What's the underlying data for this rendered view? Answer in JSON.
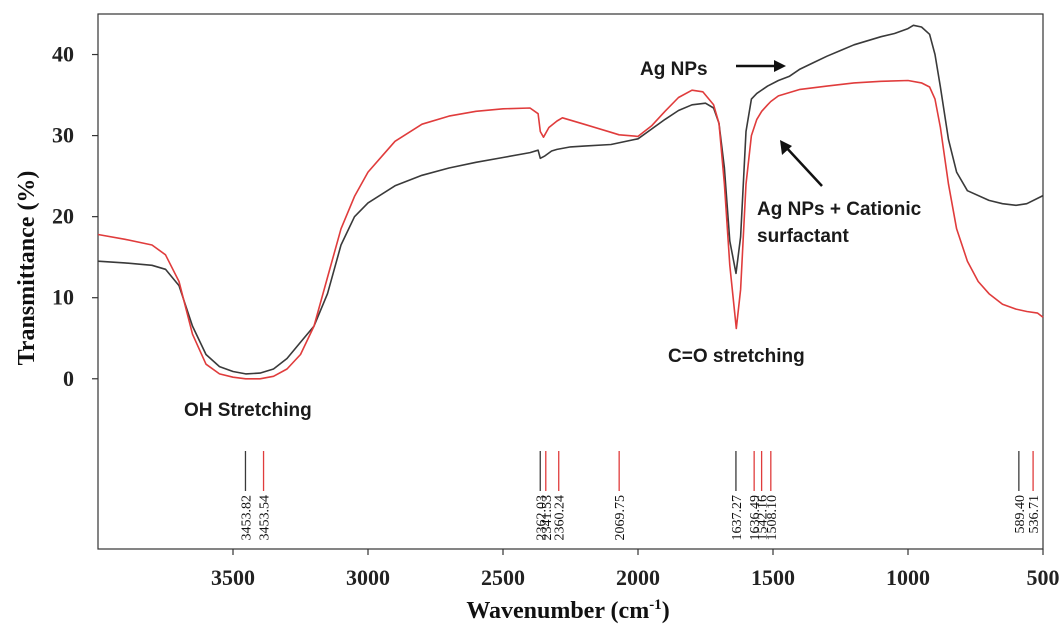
{
  "chart_data": {
    "type": "line",
    "xlabel": "Wavenumber (cm",
    "xlabel_sup": "-1",
    "xlabel_close": ")",
    "ylabel": "Transmittance (%)",
    "xlim": [
      4000,
      500
    ],
    "ylim": [
      -21,
      45
    ],
    "x_ticks": [
      3500,
      3000,
      2500,
      2000,
      1500,
      1000,
      500
    ],
    "y_ticks": [
      0,
      10,
      20,
      30,
      40
    ],
    "grid": false,
    "series": [
      {
        "name": "Ag NPs",
        "color": "#3a3a3a",
        "points": [
          [
            4000,
            14.5
          ],
          [
            3900,
            14.3
          ],
          [
            3800,
            14.0
          ],
          [
            3750,
            13.5
          ],
          [
            3700,
            11.5
          ],
          [
            3650,
            6.5
          ],
          [
            3600,
            3.0
          ],
          [
            3550,
            1.5
          ],
          [
            3500,
            0.9
          ],
          [
            3453,
            0.6
          ],
          [
            3400,
            0.7
          ],
          [
            3350,
            1.2
          ],
          [
            3300,
            2.5
          ],
          [
            3250,
            4.5
          ],
          [
            3200,
            6.5
          ],
          [
            3150,
            10.5
          ],
          [
            3100,
            16.5
          ],
          [
            3050,
            20.0
          ],
          [
            3000,
            21.7
          ],
          [
            2900,
            23.8
          ],
          [
            2800,
            25.1
          ],
          [
            2700,
            26.0
          ],
          [
            2600,
            26.7
          ],
          [
            2500,
            27.3
          ],
          [
            2400,
            27.9
          ],
          [
            2370,
            28.2
          ],
          [
            2362,
            27.2
          ],
          [
            2345,
            27.5
          ],
          [
            2320,
            28.1
          ],
          [
            2300,
            28.3
          ],
          [
            2250,
            28.6
          ],
          [
            2200,
            28.7
          ],
          [
            2100,
            28.9
          ],
          [
            2000,
            29.6
          ],
          [
            1950,
            30.8
          ],
          [
            1900,
            32.0
          ],
          [
            1850,
            33.1
          ],
          [
            1800,
            33.8
          ],
          [
            1750,
            34.0
          ],
          [
            1720,
            33.4
          ],
          [
            1700,
            31.5
          ],
          [
            1680,
            26.0
          ],
          [
            1660,
            17.0
          ],
          [
            1637,
            13.0
          ],
          [
            1620,
            17.5
          ],
          [
            1600,
            30.5
          ],
          [
            1580,
            34.5
          ],
          [
            1560,
            35.2
          ],
          [
            1520,
            36.1
          ],
          [
            1480,
            36.8
          ],
          [
            1440,
            37.3
          ],
          [
            1400,
            38.2
          ],
          [
            1350,
            39.0
          ],
          [
            1300,
            39.8
          ],
          [
            1250,
            40.5
          ],
          [
            1200,
            41.2
          ],
          [
            1100,
            42.2
          ],
          [
            1050,
            42.6
          ],
          [
            1000,
            43.2
          ],
          [
            980,
            43.6
          ],
          [
            950,
            43.4
          ],
          [
            920,
            42.5
          ],
          [
            900,
            40.0
          ],
          [
            880,
            36.0
          ],
          [
            850,
            29.5
          ],
          [
            820,
            25.5
          ],
          [
            780,
            23.2
          ],
          [
            700,
            22.0
          ],
          [
            650,
            21.6
          ],
          [
            600,
            21.4
          ],
          [
            560,
            21.6
          ],
          [
            500,
            22.6
          ]
        ]
      },
      {
        "name": "Ag NPs + Cationic surfactant",
        "color": "#e03c3c",
        "points": [
          [
            4000,
            17.8
          ],
          [
            3900,
            17.2
          ],
          [
            3800,
            16.5
          ],
          [
            3750,
            15.3
          ],
          [
            3700,
            12.0
          ],
          [
            3650,
            5.5
          ],
          [
            3600,
            1.8
          ],
          [
            3550,
            0.6
          ],
          [
            3500,
            0.2
          ],
          [
            3453,
            0.0
          ],
          [
            3400,
            0.0
          ],
          [
            3350,
            0.3
          ],
          [
            3300,
            1.2
          ],
          [
            3250,
            3.0
          ],
          [
            3200,
            6.5
          ],
          [
            3150,
            12.5
          ],
          [
            3100,
            18.5
          ],
          [
            3050,
            22.5
          ],
          [
            3000,
            25.5
          ],
          [
            2900,
            29.3
          ],
          [
            2800,
            31.4
          ],
          [
            2700,
            32.4
          ],
          [
            2600,
            33.0
          ],
          [
            2500,
            33.3
          ],
          [
            2400,
            33.4
          ],
          [
            2370,
            32.7
          ],
          [
            2362,
            30.5
          ],
          [
            2350,
            29.8
          ],
          [
            2330,
            31.0
          ],
          [
            2300,
            31.8
          ],
          [
            2280,
            32.2
          ],
          [
            2250,
            31.9
          ],
          [
            2200,
            31.4
          ],
          [
            2100,
            30.4
          ],
          [
            2070,
            30.1
          ],
          [
            2000,
            29.9
          ],
          [
            1950,
            31.2
          ],
          [
            1900,
            33.0
          ],
          [
            1850,
            34.7
          ],
          [
            1800,
            35.6
          ],
          [
            1760,
            35.4
          ],
          [
            1720,
            33.8
          ],
          [
            1700,
            31.5
          ],
          [
            1680,
            24.0
          ],
          [
            1660,
            14.0
          ],
          [
            1636,
            6.2
          ],
          [
            1620,
            11.0
          ],
          [
            1600,
            24.0
          ],
          [
            1580,
            30.0
          ],
          [
            1560,
            32.0
          ],
          [
            1542,
            33.0
          ],
          [
            1520,
            33.8
          ],
          [
            1508,
            34.2
          ],
          [
            1480,
            34.9
          ],
          [
            1400,
            35.7
          ],
          [
            1300,
            36.1
          ],
          [
            1200,
            36.5
          ],
          [
            1100,
            36.7
          ],
          [
            1000,
            36.8
          ],
          [
            950,
            36.5
          ],
          [
            920,
            36.0
          ],
          [
            900,
            34.5
          ],
          [
            880,
            31.0
          ],
          [
            850,
            24.0
          ],
          [
            820,
            18.5
          ],
          [
            780,
            14.5
          ],
          [
            740,
            12.0
          ],
          [
            700,
            10.5
          ],
          [
            650,
            9.2
          ],
          [
            600,
            8.6
          ],
          [
            560,
            8.3
          ],
          [
            520,
            8.1
          ],
          [
            500,
            7.6
          ]
        ]
      }
    ],
    "peaks": [
      {
        "x": 3453.82,
        "label": "3453.82",
        "color": "#3a3a3a"
      },
      {
        "x": 3453.54,
        "label": "3453.54",
        "color": "#e03c3c"
      },
      {
        "x": 2362.03,
        "label": "2362.03",
        "color": "#3a3a3a"
      },
      {
        "x": 2360.24,
        "label": "2360.24",
        "color": "#e03c3c"
      },
      {
        "x": 2341.53,
        "label": "2341.53",
        "color": "#e03c3c"
      },
      {
        "x": 2069.75,
        "label": "2069.75",
        "color": "#e03c3c"
      },
      {
        "x": 1637.27,
        "label": "1637.27",
        "color": "#3a3a3a"
      },
      {
        "x": 1636.49,
        "label": "1636.49",
        "color": "#e03c3c"
      },
      {
        "x": 1542.16,
        "label": "1542.16",
        "color": "#e03c3c"
      },
      {
        "x": 1508.1,
        "label": "1508.10",
        "color": "#e03c3c"
      },
      {
        "x": 589.4,
        "label": "589.40",
        "color": "#3a3a3a"
      },
      {
        "x": 536.71,
        "label": "536.71",
        "color": "#e03c3c"
      }
    ],
    "annotations": [
      {
        "text": "Ag NPs"
      },
      {
        "text": "Ag NPs + Cationic"
      },
      {
        "text": "surfactant"
      },
      {
        "text": "C=O stretching"
      },
      {
        "text": "OH Stretching"
      }
    ]
  }
}
